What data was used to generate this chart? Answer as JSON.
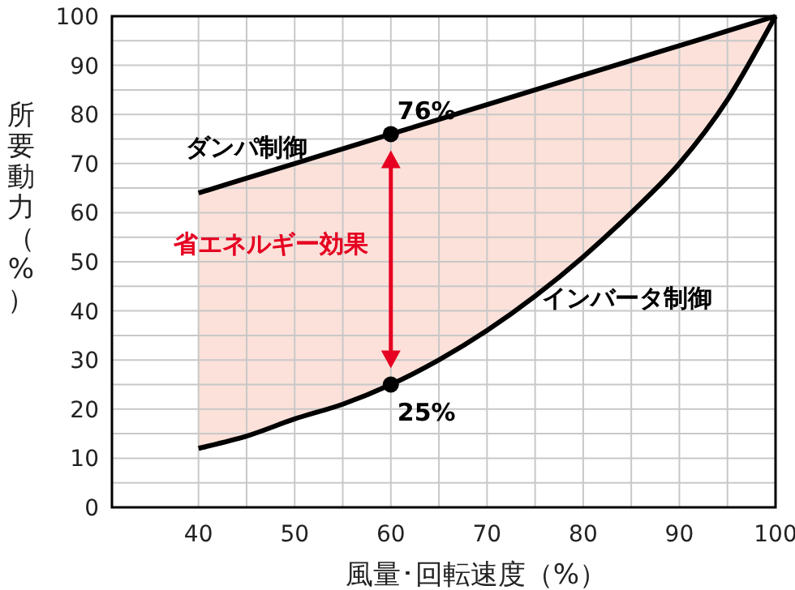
{
  "chart_data": {
    "type": "line",
    "xlabel": "風量･回転速度（%）",
    "ylabel": "所要動力（%）",
    "xlim": [
      31,
      100
    ],
    "ylim": [
      0,
      100
    ],
    "xticks": [
      40,
      {
        "value": 45,
        "label": null
      },
      50,
      {
        "value": 55,
        "label": null
      },
      60,
      {
        "value": 65,
        "label": null
      },
      70,
      {
        "value": 75,
        "label": null
      },
      80,
      {
        "value": 85,
        "label": null
      },
      90,
      {
        "value": 95,
        "label": null
      },
      100
    ],
    "yticks": [
      0,
      {
        "value": 5,
        "label": null
      },
      10,
      {
        "value": 15,
        "label": null
      },
      20,
      {
        "value": 25,
        "label": null
      },
      30,
      {
        "value": 35,
        "label": null
      },
      40,
      {
        "value": 45,
        "label": null
      },
      50,
      {
        "value": 55,
        "label": null
      },
      60,
      {
        "value": 65,
        "label": null
      },
      70,
      {
        "value": 75,
        "label": null
      },
      80,
      {
        "value": 85,
        "label": null
      },
      90,
      {
        "value": 95,
        "label": null
      },
      100
    ],
    "grid": true,
    "annotations": [
      "省エネルギー効果"
    ],
    "series": [
      {
        "name": "ダンパ制御",
        "color": "#000000",
        "x": [
          40,
          45,
          50,
          55,
          60,
          65,
          70,
          75,
          80,
          85,
          90,
          95,
          100
        ],
        "values": [
          64,
          67,
          70,
          73,
          76,
          79,
          82,
          85,
          88,
          91,
          94,
          97,
          100
        ],
        "lower": [
          12,
          14.5,
          18,
          21,
          25,
          30,
          36,
          43,
          51,
          60,
          70,
          83,
          100
        ],
        "upper": [
          64,
          67,
          70,
          73,
          76,
          79,
          82,
          85,
          88,
          91,
          94,
          97,
          100
        ]
      },
      {
        "name": "インバータ制御",
        "color": "#000000",
        "x": [
          40,
          45,
          50,
          55,
          60,
          65,
          70,
          75,
          80,
          85,
          90,
          95,
          100
        ],
        "values": [
          12,
          14.5,
          18,
          21,
          25,
          30,
          36,
          43,
          51,
          60,
          70,
          83,
          100
        ]
      },
      {
        "type": "scatter",
        "color": "#000000",
        "marker": "circle",
        "x": [
          60,
          60
        ],
        "values": [
          76,
          25
        ],
        "value_labels": [
          "76%",
          "25%"
        ]
      }
    ]
  }
}
